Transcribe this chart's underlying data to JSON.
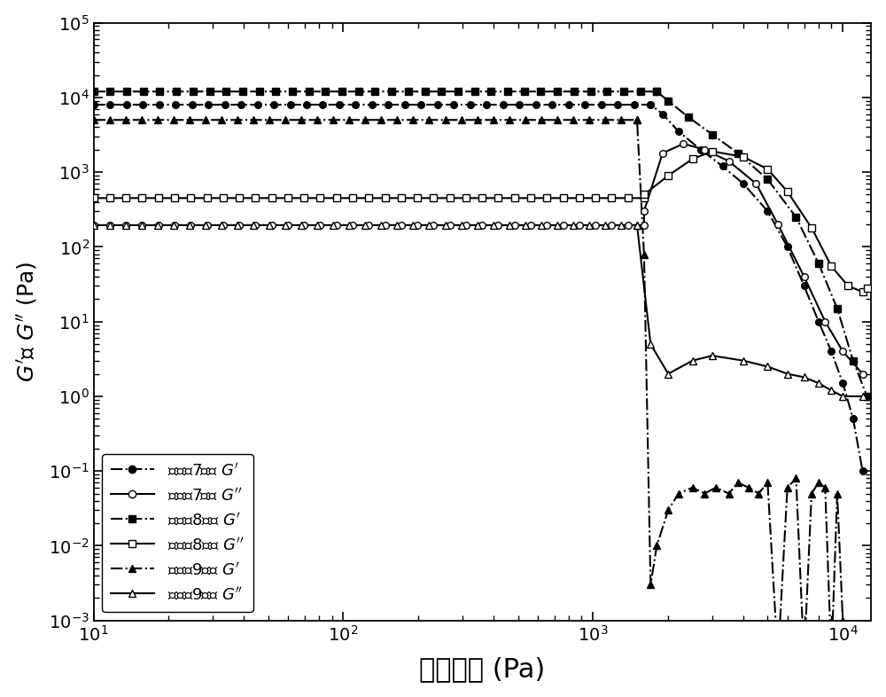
{
  "xlabel": "动态应力 (Pa)",
  "ylabel_left": "G'或 G'' (Pa)",
  "xlim": [
    10,
    13000
  ],
  "ylim_log": [
    -3,
    5
  ],
  "series": {
    "ex7_Gp": {
      "plateau_val": 8000,
      "plateau_end": 1700,
      "tail_x": [
        1700,
        1900,
        2200,
        2700,
        3300,
        4000,
        5000,
        6000,
        7000,
        8000,
        9000,
        10000,
        11000,
        12000
      ],
      "tail_y": [
        8000,
        6000,
        3500,
        2000,
        1200,
        700,
        300,
        100,
        30,
        10,
        4,
        1.5,
        0.5,
        0.1
      ],
      "marker": "o",
      "filled": true
    },
    "ex7_Gpp": {
      "plateau_val": 195,
      "plateau_end": 1600,
      "tail_x": [
        1600,
        1900,
        2300,
        2800,
        3500,
        4500,
        5500,
        7000,
        8500,
        10000,
        12000
      ],
      "tail_y": [
        300,
        1800,
        2400,
        2000,
        1400,
        700,
        200,
        40,
        10,
        4,
        2
      ],
      "marker": "o",
      "filled": false
    },
    "ex8_Gp": {
      "plateau_val": 12000,
      "plateau_end": 1800,
      "tail_x": [
        1800,
        2000,
        2400,
        3000,
        3800,
        5000,
        6500,
        8000,
        9500,
        11000,
        12500
      ],
      "tail_y": [
        12000,
        9000,
        5500,
        3200,
        1800,
        800,
        250,
        60,
        15,
        3,
        1
      ],
      "marker": "s",
      "filled": true
    },
    "ex8_Gpp": {
      "plateau_val": 450,
      "plateau_end": 1600,
      "tail_x": [
        1600,
        2000,
        2500,
        3000,
        4000,
        5000,
        6000,
        7500,
        9000,
        10500,
        12000,
        12500
      ],
      "tail_y": [
        500,
        900,
        1500,
        1900,
        1600,
        1100,
        550,
        180,
        55,
        30,
        25,
        28
      ],
      "marker": "s",
      "filled": false
    },
    "ex9_Gp": {
      "plateau_val": 5000,
      "plateau_end": 1500,
      "tail_x": [
        1500,
        1600,
        1700,
        1800,
        2000,
        2200,
        2500,
        2800,
        3100,
        3500,
        3800,
        4200,
        4600,
        5000,
        5500,
        6000,
        6500,
        7000,
        7500,
        8000,
        8500,
        9000,
        9500,
        10000
      ],
      "tail_y": [
        5000,
        80,
        0.003,
        0.01,
        0.03,
        0.05,
        0.06,
        0.05,
        0.06,
        0.05,
        0.07,
        0.06,
        0.05,
        0.07,
        0.0003,
        0.06,
        0.08,
        0.0003,
        0.05,
        0.07,
        0.06,
        0.0003,
        0.05,
        0.001
      ],
      "marker": "^",
      "filled": true
    },
    "ex9_Gpp": {
      "plateau_val": 195,
      "plateau_end": 1500,
      "tail_x": [
        1500,
        1700,
        2000,
        2500,
        3000,
        4000,
        5000,
        6000,
        7000,
        8000,
        9000,
        10000,
        12000
      ],
      "tail_y": [
        195,
        5,
        2,
        3,
        3.5,
        3,
        2.5,
        2,
        1.8,
        1.5,
        1.2,
        1,
        1
      ],
      "marker": "^",
      "filled": false
    }
  }
}
